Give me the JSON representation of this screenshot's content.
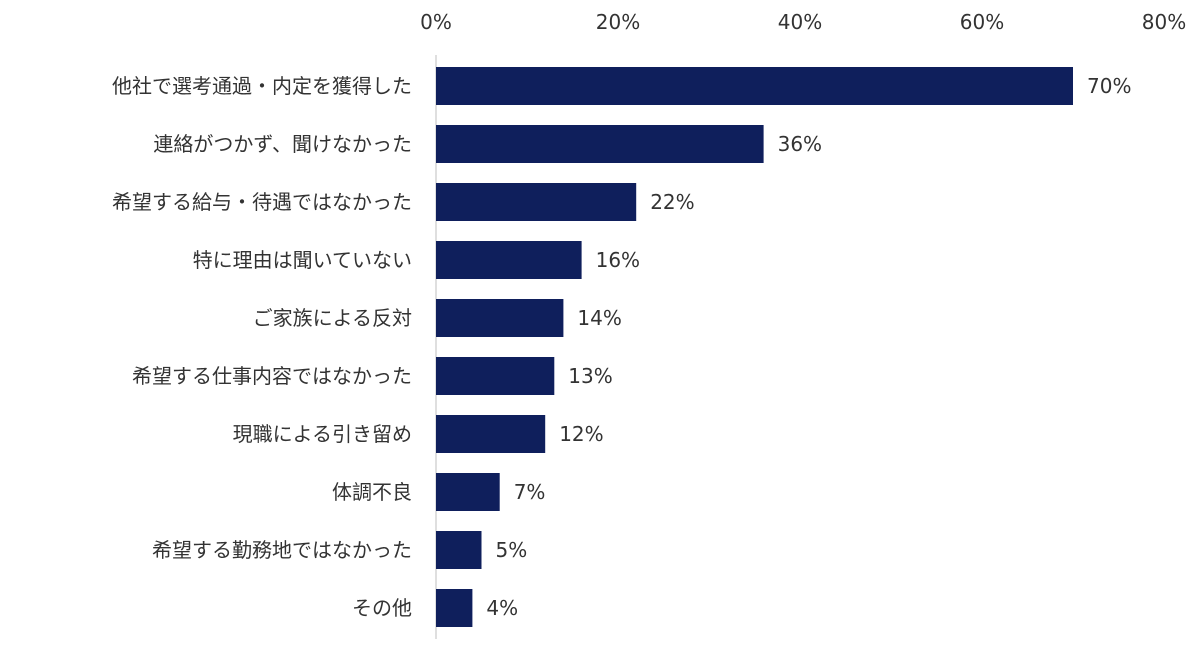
{
  "chart_data": {
    "type": "bar",
    "orientation": "horizontal",
    "title": "",
    "xlabel": "",
    "ylabel": "",
    "xlim": [
      0,
      80
    ],
    "x_ticks": [
      "0%",
      "20%",
      "40%",
      "60%",
      "80%"
    ],
    "x_axis_position": "top",
    "grid": false,
    "bar_color": "#0f1f5c",
    "categories": [
      "他社で選考通過・内定を獲得した",
      "連絡がつかず、聞けなかった",
      "希望する給与・待遇ではなかった",
      "特に理由は聞いていない",
      "ご家族による反対",
      "希望する仕事内容ではなかった",
      "現職による引き留め",
      "体調不良",
      "希望する勤務地ではなかった",
      "その他"
    ],
    "values": [
      70,
      36,
      22,
      16,
      14,
      13,
      12,
      7,
      5,
      4
    ],
    "value_labels": [
      "70%",
      "36%",
      "22%",
      "16%",
      "14%",
      "13%",
      "12%",
      "7%",
      "5%",
      "4%"
    ]
  }
}
